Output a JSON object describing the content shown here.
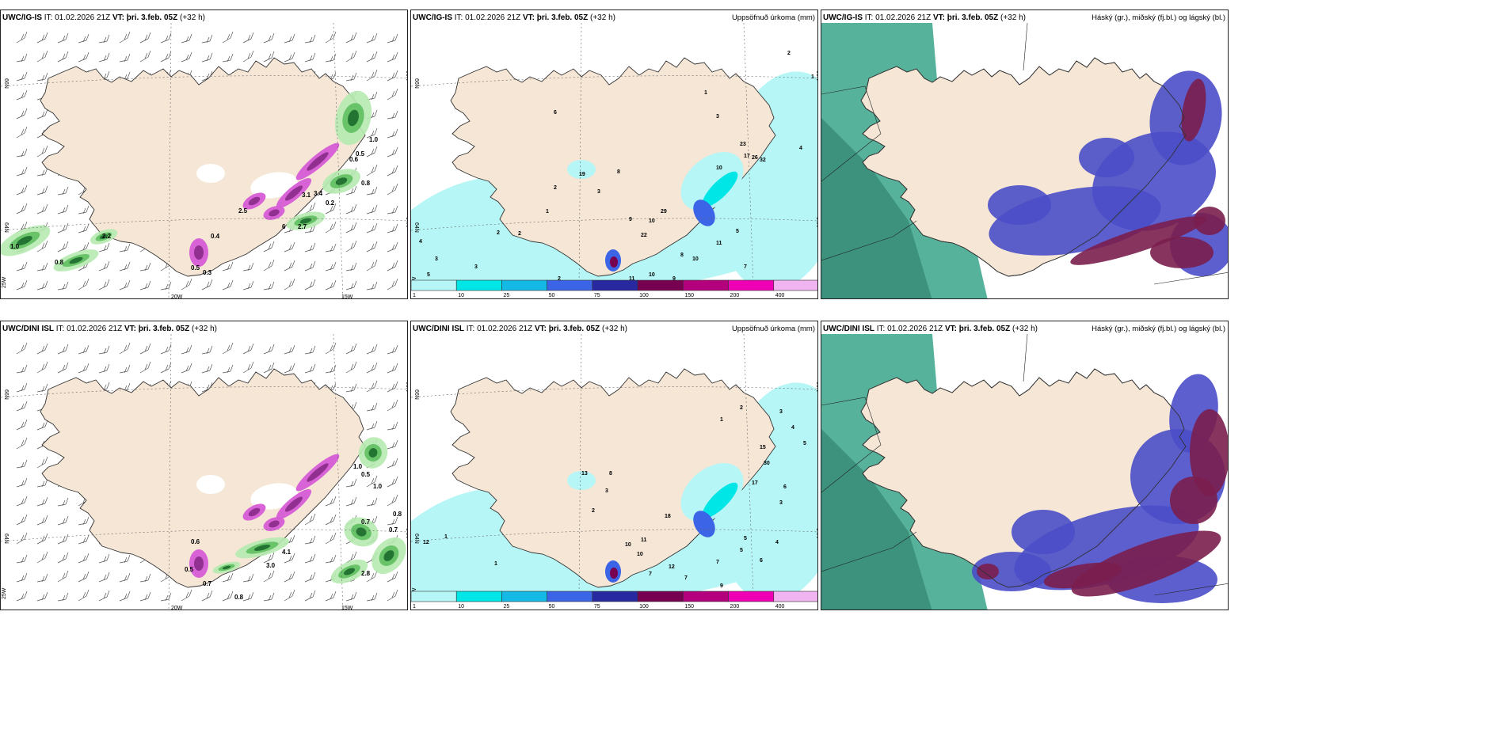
{
  "panels": [
    {
      "model": "UWC/IG-IS",
      "it": "IT: 01.02.2026 21Z",
      "vt_label": "VT:",
      "vt": "þri. 3.feb. 05Z",
      "offset": "(+32 h)",
      "kind": "wind",
      "labels": [
        "1.0",
        "0.8",
        "2.2",
        "0.4",
        "0.5",
        "0.3",
        "0.8",
        "2.5",
        "3.1",
        "2.7",
        "0.2",
        "3.4",
        "0.6",
        "0.5",
        "6",
        "1.0"
      ]
    },
    {
      "model": "UWC/IG-IS",
      "it": "IT: 01.02.2026 21Z",
      "vt_label": "VT:",
      "vt": "þri. 3.feb. 05Z",
      "offset": "(+32 h)",
      "kind": "precip",
      "title": "Uppsöfnuð úrkoma (mm)",
      "labels": [
        "2",
        "1",
        "3",
        "1",
        "6",
        "23",
        "17",
        "26",
        "32",
        "4",
        "10",
        "19",
        "8",
        "3",
        "2",
        "1",
        "2",
        "29",
        "10",
        "22",
        "9",
        "2",
        "4",
        "3",
        "5",
        "3",
        "8",
        "10",
        "11",
        "7",
        "2",
        "11",
        "9",
        "10",
        "5"
      ]
    },
    {
      "model": "UWC/IG-IS",
      "it": "IT: 01.02.2026 21Z",
      "vt_label": "VT:",
      "vt": "þri. 3.feb. 05Z",
      "offset": "(+32 h)",
      "kind": "cloud",
      "title": "Háský (gr.), miðský (fj.bl.) og lágský (bl.)"
    },
    {
      "model": "UWC/DINI ISL",
      "it": "IT: 01.02.2026 21Z",
      "vt_label": "VT:",
      "vt": "þri. 3.feb. 05Z",
      "offset": "(+32 h)",
      "kind": "wind",
      "labels": [
        "0.6",
        "0.5",
        "0.7",
        "0.8",
        "4.1",
        "3.0",
        "1.0",
        "2.8",
        "0.7",
        "0.8",
        "0.7",
        "0.5",
        "1.0"
      ]
    },
    {
      "model": "UWC/DINI ISL",
      "it": "IT: 01.02.2026 21Z",
      "vt_label": "VT:",
      "vt": "þri. 3.feb. 05Z",
      "offset": "(+32 h)",
      "kind": "precip",
      "title": "Uppsöfnuð úrkoma (mm)",
      "labels": [
        "1",
        "2",
        "3",
        "4",
        "5",
        "15",
        "30",
        "6",
        "13",
        "8",
        "2",
        "3",
        "18",
        "10",
        "12",
        "11",
        "10",
        "7",
        "9",
        "7",
        "5",
        "6",
        "4",
        "17",
        "3",
        "1",
        "12",
        "7",
        "5",
        "1"
      ]
    },
    {
      "model": "UWC/DINI ISL",
      "it": "IT: 01.02.2026 21Z",
      "vt_label": "VT:",
      "vt": "þri. 3.feb. 05Z",
      "offset": "(+32 h)",
      "kind": "cloud",
      "title": "Háský (gr.), miðský (fj.bl.) og lágský (bl.)"
    }
  ],
  "axis_labels": {
    "lat66": "66N",
    "lat64": "64N",
    "lon25": "25W",
    "lon20": "20W",
    "lon15": "15W"
  },
  "legend": {
    "ticks": [
      "1",
      "10",
      "25",
      "50",
      "75",
      "100",
      "150",
      "200",
      "400"
    ],
    "colors": [
      "#b7f6f6",
      "#00e6e6",
      "#14b9e6",
      "#3c64e6",
      "#2828a0",
      "#780050",
      "#b4007d",
      "#f000b4",
      "#f0b4f0"
    ]
  },
  "colors": {
    "land": "#f5e6d6",
    "sea": "#ffffff",
    "precip_light": "#b7f6f6",
    "cloud_high": "#3aa58a",
    "cloud_mid": "#4a4ec8",
    "cloud_low": "#7a1e4e"
  }
}
